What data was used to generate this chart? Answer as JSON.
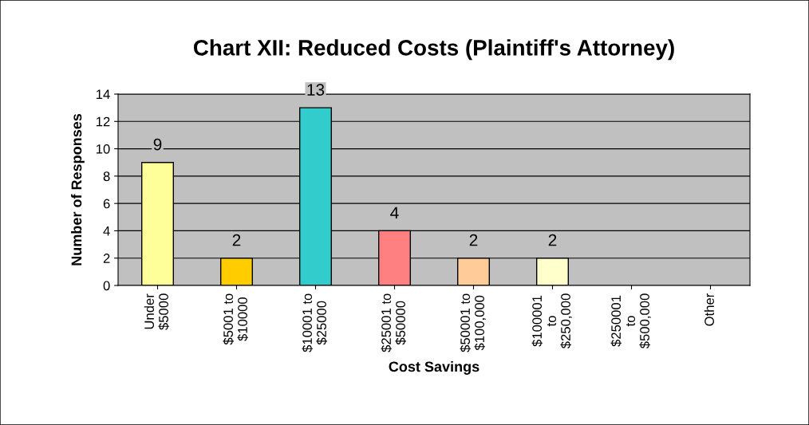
{
  "chart_data": {
    "type": "bar",
    "title": "Chart XII: Reduced Costs (Plaintiff's Attorney)",
    "xlabel": "Cost Savings",
    "ylabel": "Number of Responses",
    "categories": [
      "Under\n$5000",
      "$5001 to\n$10000",
      "$10001 to\n$25000",
      "$25001 to\n$50000",
      "$50001 to\n$100,000",
      "$100001\nto\n$250,000",
      "$250001\nto\n$500,000",
      "Other"
    ],
    "values": [
      9,
      2,
      13,
      4,
      2,
      2,
      null,
      null
    ],
    "colors": [
      "#ffff99",
      "#ffcc00",
      "#33cccc",
      "#ff8080",
      "#ffcc99",
      "#ffffcc",
      null,
      null
    ],
    "value_labels": [
      "9",
      "2",
      "13",
      "4",
      "2",
      "2",
      null,
      null
    ],
    "ylim": [
      0,
      14
    ],
    "yticks": [
      0,
      2,
      4,
      6,
      8,
      10,
      12,
      14
    ],
    "grid": "y",
    "legend": false
  }
}
